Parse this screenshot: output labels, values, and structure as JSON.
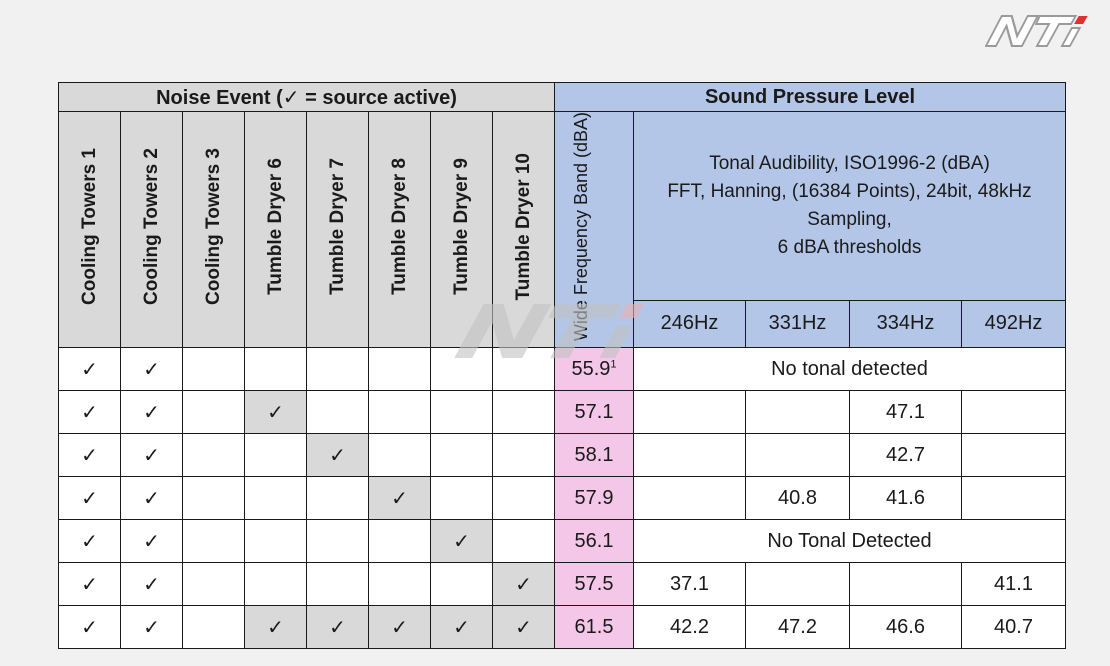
{
  "header": {
    "noise_event": "Noise Event (✓ = source active)",
    "spl": "Sound Pressure Level",
    "wide_band": "Wide Frequency Band (dBA)",
    "tonal": "Tonal Audibility, ISO1996-2 (dBA)\nFFT, Hanning, (16384 Points), 24bit, 48kHz\nSampling,\n6 dBA thresholds"
  },
  "sources": [
    "Cooling Towers 1",
    "Cooling Towers 2",
    "Cooling Towers 3",
    "Tumble Dryer 6",
    "Tumble Dryer 7",
    "Tumble Dryer 8",
    "Tumble Dryer 9",
    "Tumble Dryer 10"
  ],
  "frequencies": [
    "246Hz",
    "331Hz",
    "334Hz",
    "492Hz"
  ],
  "check_mark": "✓",
  "rows": [
    {
      "active": [
        1,
        1,
        0,
        0,
        0,
        0,
        0,
        0
      ],
      "wide": "55.9",
      "note": "1",
      "tonal": [
        "No tonal detected"
      ]
    },
    {
      "active": [
        1,
        1,
        0,
        1,
        0,
        0,
        0,
        0
      ],
      "wide": "57.1",
      "tonal": [
        "",
        "",
        "47.1",
        ""
      ]
    },
    {
      "active": [
        1,
        1,
        0,
        0,
        1,
        0,
        0,
        0
      ],
      "wide": "58.1",
      "tonal": [
        "",
        "",
        "42.7",
        ""
      ]
    },
    {
      "active": [
        1,
        1,
        0,
        0,
        0,
        1,
        0,
        0
      ],
      "wide": "57.9",
      "tonal": [
        "",
        "40.8",
        "41.6",
        ""
      ]
    },
    {
      "active": [
        1,
        1,
        0,
        0,
        0,
        0,
        1,
        0
      ],
      "wide": "56.1",
      "tonal": [
        "No Tonal Detected"
      ]
    },
    {
      "active": [
        1,
        1,
        0,
        0,
        0,
        0,
        0,
        1
      ],
      "wide": "57.5",
      "tonal": [
        "37.1",
        "",
        "",
        "41.1"
      ]
    },
    {
      "active": [
        1,
        1,
        0,
        1,
        1,
        1,
        1,
        1
      ],
      "wide": "61.5",
      "tonal": [
        "42.2",
        "47.2",
        "46.6",
        "40.7"
      ]
    }
  ],
  "colors": {
    "gray": "#d9d9d9",
    "blue": "#b4c6e7",
    "pink": "#f4c7e9"
  },
  "logo_icon": "nti-logo-icon"
}
